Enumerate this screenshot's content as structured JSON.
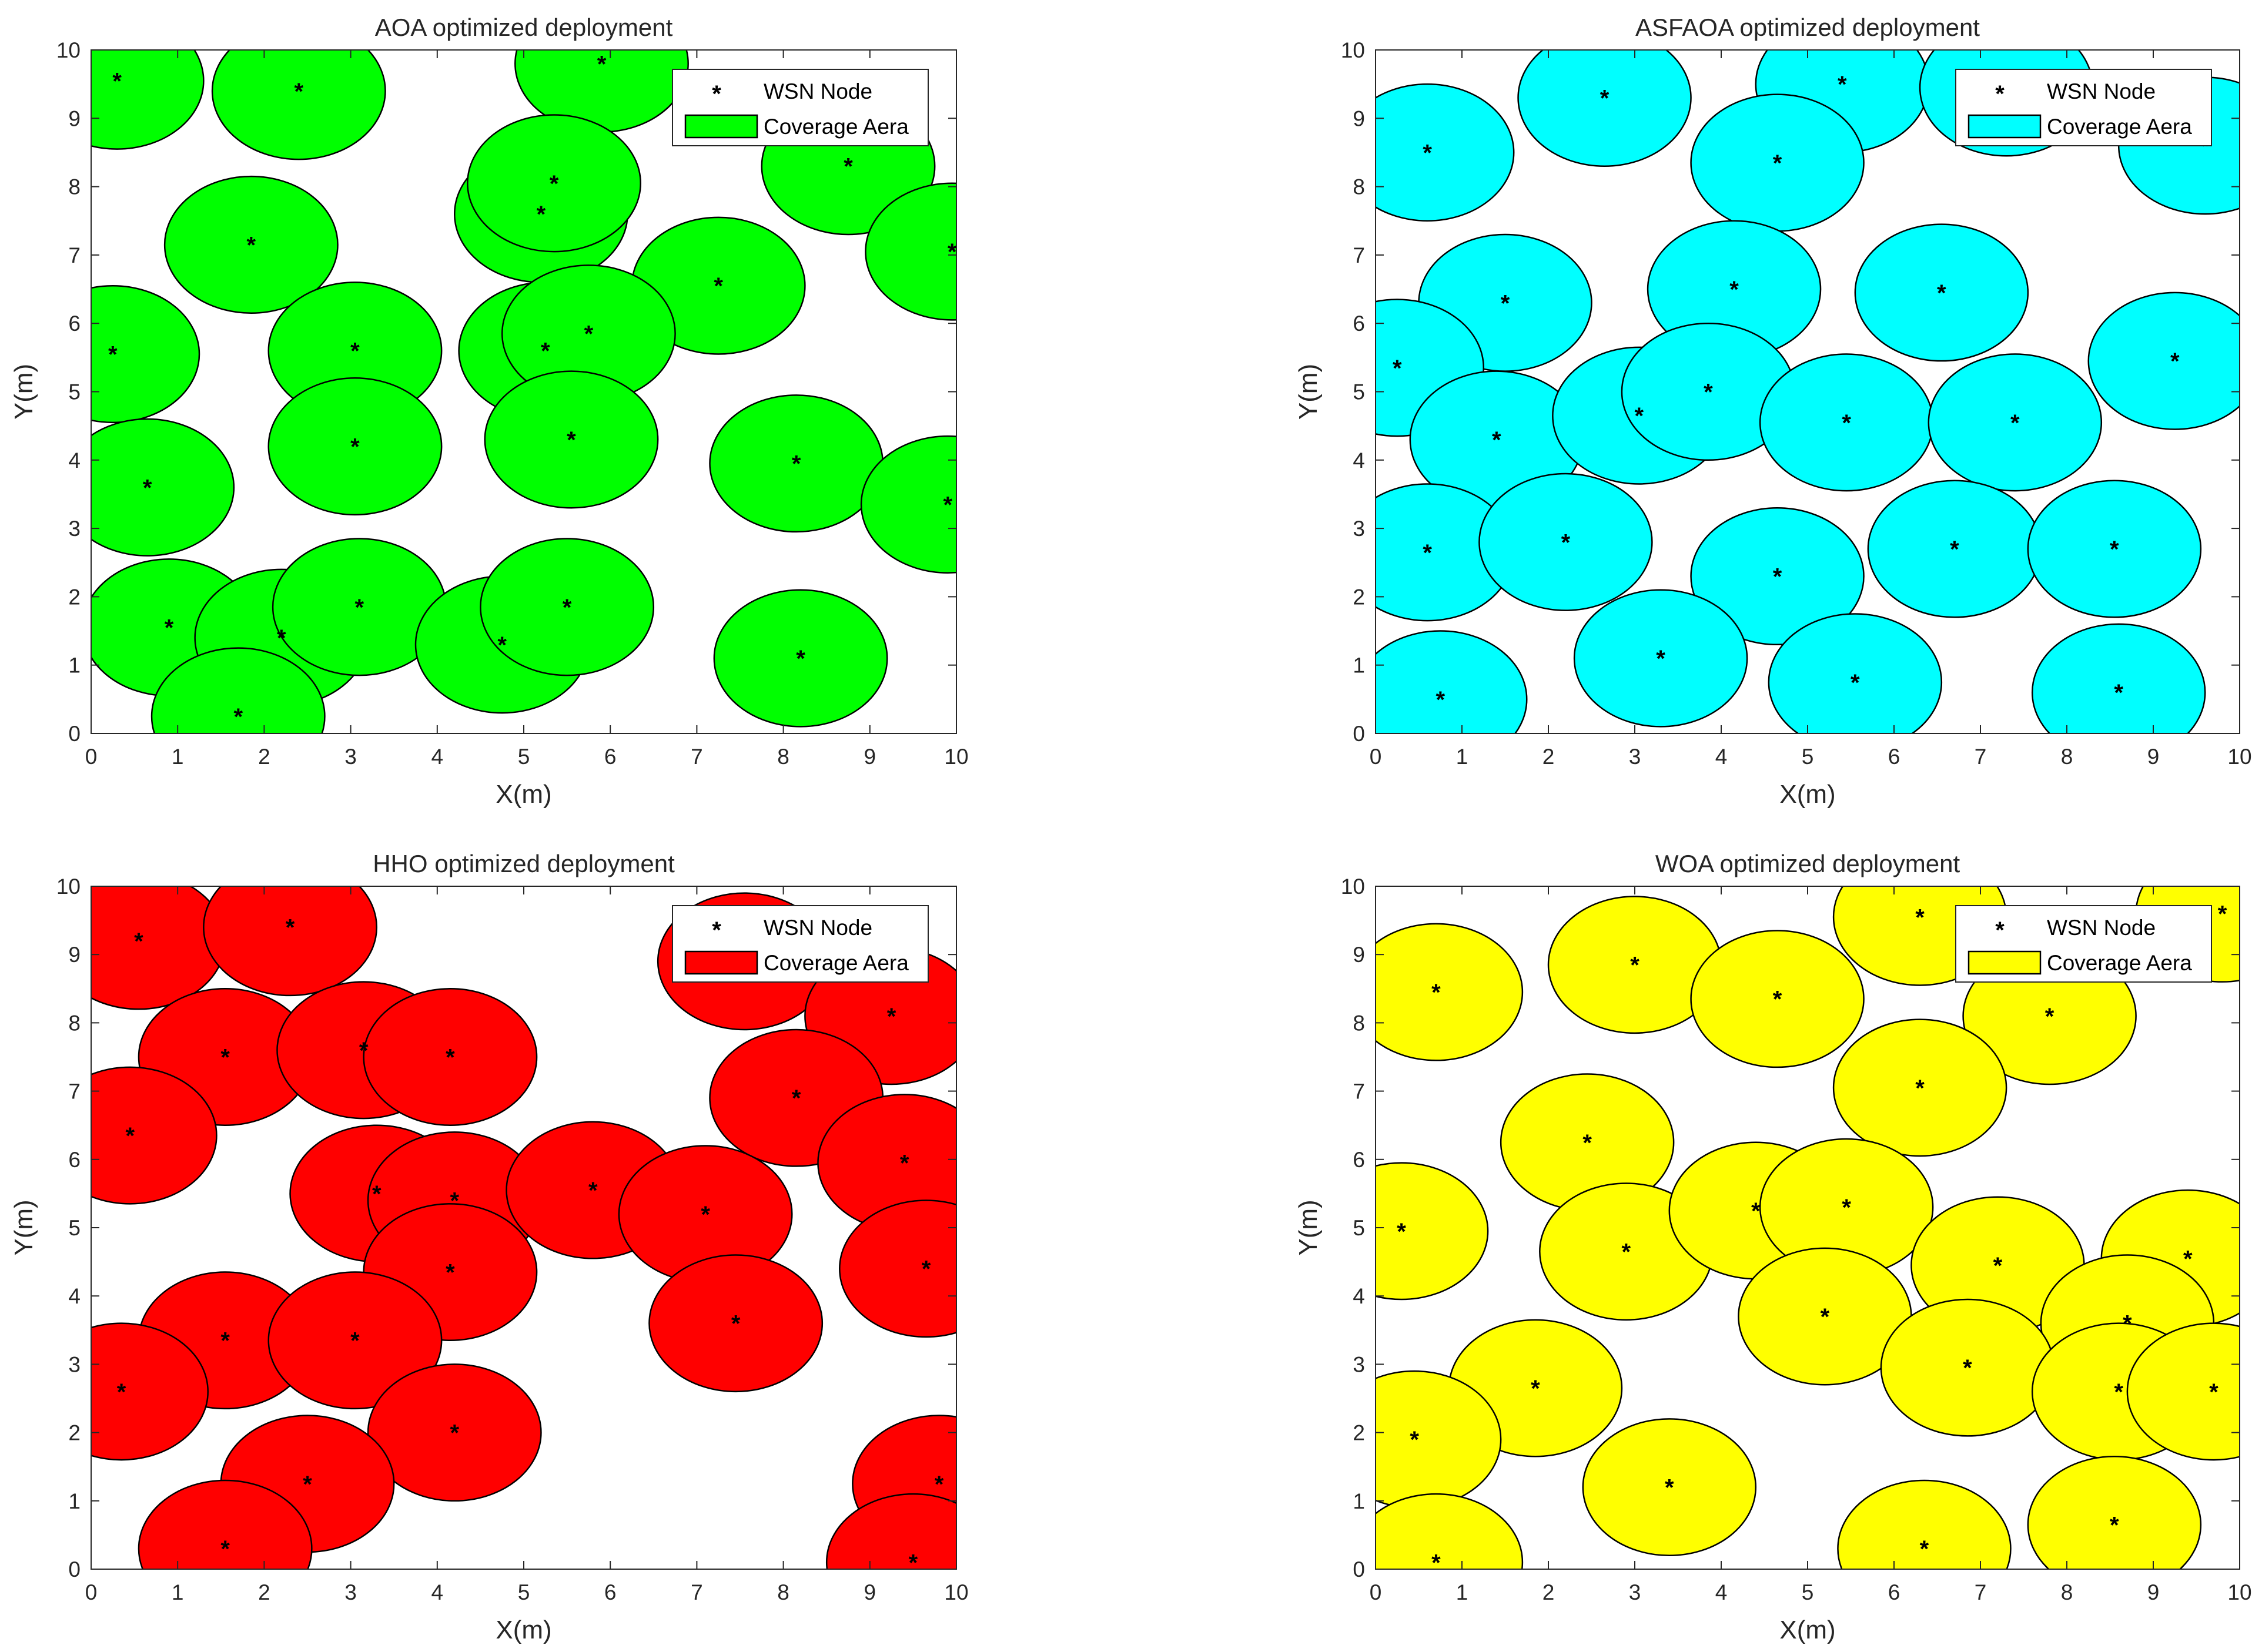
{
  "chart_data": [
    {
      "type": "scatter",
      "title": "AOA optimized deployment",
      "xlabel": "X(m)",
      "ylabel": "Y(m)",
      "xlim": [
        0,
        10
      ],
      "ylim": [
        0,
        10
      ],
      "xticks": [
        "0",
        "1",
        "2",
        "3",
        "4",
        "5",
        "6",
        "7",
        "8",
        "9",
        "10"
      ],
      "yticks": [
        "0",
        "1",
        "2",
        "3",
        "4",
        "5",
        "6",
        "7",
        "8",
        "9",
        "10"
      ],
      "coverage_radius": 1,
      "coverage_color": "#00ff00",
      "legend": {
        "node_label": "WSN Node",
        "area_label": "Coverage Aera",
        "position": "top-right"
      },
      "nodes": [
        {
          "x": 0.3,
          "y": 9.55
        },
        {
          "x": 2.4,
          "y": 9.4
        },
        {
          "x": 5.9,
          "y": 9.8
        },
        {
          "x": 1.85,
          "y": 7.15
        },
        {
          "x": 5.2,
          "y": 7.6
        },
        {
          "x": 5.35,
          "y": 8.05
        },
        {
          "x": 8.75,
          "y": 8.3
        },
        {
          "x": 9.95,
          "y": 7.05
        },
        {
          "x": 7.25,
          "y": 6.55
        },
        {
          "x": 0.25,
          "y": 5.55
        },
        {
          "x": 3.05,
          "y": 5.6
        },
        {
          "x": 5.25,
          "y": 5.6
        },
        {
          "x": 5.75,
          "y": 5.85
        },
        {
          "x": 3.05,
          "y": 4.2
        },
        {
          "x": 5.55,
          "y": 4.3
        },
        {
          "x": 0.65,
          "y": 3.6
        },
        {
          "x": 8.15,
          "y": 3.95
        },
        {
          "x": 9.9,
          "y": 3.35
        },
        {
          "x": 0.9,
          "y": 1.55
        },
        {
          "x": 2.2,
          "y": 1.4
        },
        {
          "x": 3.1,
          "y": 1.85
        },
        {
          "x": 4.75,
          "y": 1.3
        },
        {
          "x": 5.5,
          "y": 1.85
        },
        {
          "x": 8.2,
          "y": 1.1
        },
        {
          "x": 1.7,
          "y": 0.25
        }
      ]
    },
    {
      "type": "scatter",
      "title": "ASFAOA optimized deployment",
      "xlabel": "X(m)",
      "ylabel": "Y(m)",
      "xlim": [
        0,
        10
      ],
      "ylim": [
        0,
        10
      ],
      "xticks": [
        "0",
        "1",
        "2",
        "3",
        "4",
        "5",
        "6",
        "7",
        "8",
        "9",
        "10"
      ],
      "yticks": [
        "0",
        "1",
        "2",
        "3",
        "4",
        "5",
        "6",
        "7",
        "8",
        "9",
        "10"
      ],
      "coverage_radius": 1,
      "coverage_color": "#00ffff",
      "legend": {
        "node_label": "WSN Node",
        "area_label": "Coverage Aera",
        "position": "top-right"
      },
      "nodes": [
        {
          "x": 0.6,
          "y": 8.5
        },
        {
          "x": 2.65,
          "y": 9.3
        },
        {
          "x": 5.4,
          "y": 9.5
        },
        {
          "x": 7.3,
          "y": 9.45
        },
        {
          "x": 4.65,
          "y": 8.35
        },
        {
          "x": 9.6,
          "y": 8.6
        },
        {
          "x": 1.5,
          "y": 6.3
        },
        {
          "x": 4.15,
          "y": 6.5
        },
        {
          "x": 6.55,
          "y": 6.45
        },
        {
          "x": 0.25,
          "y": 5.35
        },
        {
          "x": 9.25,
          "y": 5.45
        },
        {
          "x": 1.4,
          "y": 4.3
        },
        {
          "x": 3.05,
          "y": 4.65
        },
        {
          "x": 3.85,
          "y": 5.0
        },
        {
          "x": 5.45,
          "y": 4.55
        },
        {
          "x": 7.4,
          "y": 4.55
        },
        {
          "x": 0.6,
          "y": 2.65
        },
        {
          "x": 2.2,
          "y": 2.8
        },
        {
          "x": 4.65,
          "y": 2.3
        },
        {
          "x": 6.7,
          "y": 2.7
        },
        {
          "x": 8.55,
          "y": 2.7
        },
        {
          "x": 3.3,
          "y": 1.1
        },
        {
          "x": 5.55,
          "y": 0.75
        },
        {
          "x": 8.6,
          "y": 0.6
        },
        {
          "x": 0.75,
          "y": 0.5
        }
      ]
    },
    {
      "type": "scatter",
      "title": "HHO optimized deployment",
      "xlabel": "X(m)",
      "ylabel": "Y(m)",
      "xlim": [
        0,
        10
      ],
      "ylim": [
        0,
        10
      ],
      "xticks": [
        "0",
        "1",
        "2",
        "3",
        "4",
        "5",
        "6",
        "7",
        "8",
        "9",
        "10"
      ],
      "yticks": [
        "0",
        "1",
        "2",
        "3",
        "4",
        "5",
        "6",
        "7",
        "8",
        "9",
        "10"
      ],
      "coverage_radius": 1,
      "coverage_color": "#ff0000",
      "legend": {
        "node_label": "WSN Node",
        "area_label": "Coverage Aera",
        "position": "top-right"
      },
      "nodes": [
        {
          "x": 0.55,
          "y": 9.2
        },
        {
          "x": 2.3,
          "y": 9.4
        },
        {
          "x": 7.55,
          "y": 8.9
        },
        {
          "x": 9.25,
          "y": 8.1
        },
        {
          "x": 1.55,
          "y": 7.5
        },
        {
          "x": 3.15,
          "y": 7.6
        },
        {
          "x": 4.15,
          "y": 7.5
        },
        {
          "x": 8.15,
          "y": 6.9
        },
        {
          "x": 0.45,
          "y": 6.35
        },
        {
          "x": 9.4,
          "y": 5.95
        },
        {
          "x": 3.3,
          "y": 5.5
        },
        {
          "x": 4.2,
          "y": 5.4
        },
        {
          "x": 5.8,
          "y": 5.55
        },
        {
          "x": 7.1,
          "y": 5.2
        },
        {
          "x": 4.15,
          "y": 4.35
        },
        {
          "x": 9.65,
          "y": 4.4
        },
        {
          "x": 7.45,
          "y": 3.6
        },
        {
          "x": 1.55,
          "y": 3.35
        },
        {
          "x": 3.05,
          "y": 3.35
        },
        {
          "x": 0.35,
          "y": 2.6
        },
        {
          "x": 4.2,
          "y": 2.0
        },
        {
          "x": 2.5,
          "y": 1.25
        },
        {
          "x": 9.8,
          "y": 1.25
        },
        {
          "x": 1.55,
          "y": 0.3
        },
        {
          "x": 9.5,
          "y": 0.1
        }
      ]
    },
    {
      "type": "scatter",
      "title": "WOA optimized deployment",
      "xlabel": "X(m)",
      "ylabel": "Y(m)",
      "xlim": [
        0,
        10
      ],
      "ylim": [
        0,
        10
      ],
      "xticks": [
        "0",
        "1",
        "2",
        "3",
        "4",
        "5",
        "6",
        "7",
        "8",
        "9",
        "10"
      ],
      "yticks": [
        "0",
        "1",
        "2",
        "3",
        "4",
        "5",
        "6",
        "7",
        "8",
        "9",
        "10"
      ],
      "coverage_radius": 1,
      "coverage_color": "#ffff00",
      "legend": {
        "node_label": "WSN Node",
        "area_label": "Coverage Aera",
        "position": "top-right"
      },
      "nodes": [
        {
          "x": 0.7,
          "y": 8.45
        },
        {
          "x": 3.0,
          "y": 8.85
        },
        {
          "x": 4.65,
          "y": 8.35
        },
        {
          "x": 6.3,
          "y": 9.55
        },
        {
          "x": 9.8,
          "y": 9.6
        },
        {
          "x": 7.8,
          "y": 8.1
        },
        {
          "x": 6.3,
          "y": 7.05
        },
        {
          "x": 2.45,
          "y": 6.25
        },
        {
          "x": 0.3,
          "y": 4.95
        },
        {
          "x": 2.9,
          "y": 4.65
        },
        {
          "x": 4.4,
          "y": 5.25
        },
        {
          "x": 5.45,
          "y": 5.3
        },
        {
          "x": 7.2,
          "y": 4.45
        },
        {
          "x": 9.4,
          "y": 4.55
        },
        {
          "x": 5.2,
          "y": 3.7
        },
        {
          "x": 8.7,
          "y": 3.6
        },
        {
          "x": 6.85,
          "y": 2.95
        },
        {
          "x": 1.85,
          "y": 2.65
        },
        {
          "x": 8.6,
          "y": 2.6
        },
        {
          "x": 9.7,
          "y": 2.6
        },
        {
          "x": 0.45,
          "y": 1.9
        },
        {
          "x": 3.4,
          "y": 1.2
        },
        {
          "x": 8.55,
          "y": 0.65
        },
        {
          "x": 6.35,
          "y": 0.3
        },
        {
          "x": 0.7,
          "y": 0.1
        }
      ]
    }
  ]
}
